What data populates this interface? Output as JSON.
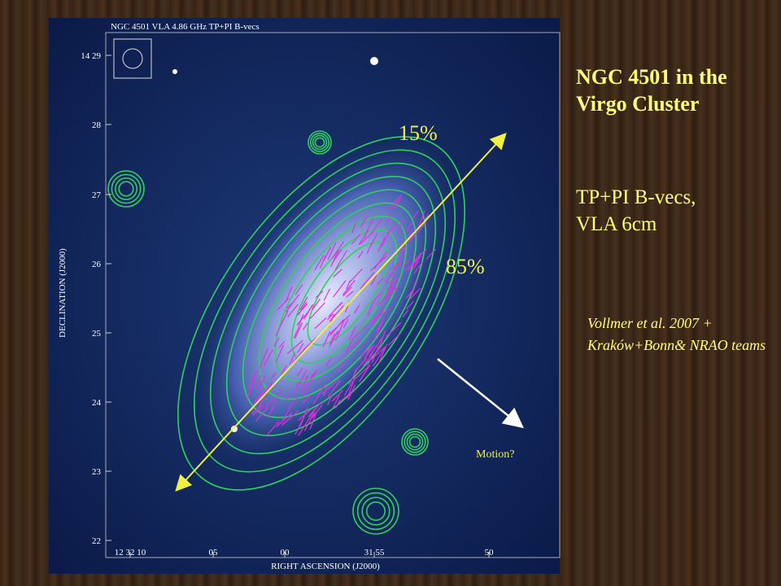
{
  "slide": {
    "title": "NGC 4501 in the Virgo Cluster",
    "subtitle": "TP+PI B-vecs, VLA 6cm",
    "credit": "Vollmer et al. 2007 + Kraków+Bonn& NRAO teams"
  },
  "image": {
    "title": "NGC 4501 VLA 4.86 GHz TP+PI B-vecs",
    "y_axis_label": "DECLINATION (J2000)",
    "x_axis_label": "RIGHT ASCENSION (J2000)",
    "y_tick_labels": [
      "14 29",
      "28",
      "27",
      "26",
      "25",
      "24",
      "23",
      "22"
    ],
    "x_tick_labels": [
      "12 32 10",
      "05",
      "00",
      "31 55",
      "50"
    ],
    "annotations": [
      "15%",
      "85%",
      "Motion?"
    ]
  }
}
